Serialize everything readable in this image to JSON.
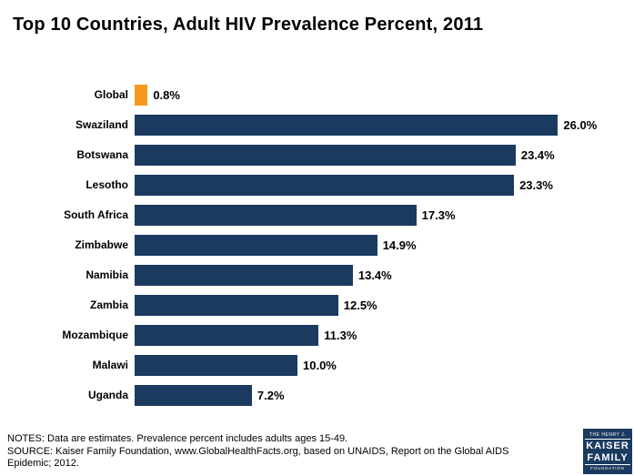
{
  "title": "Top 10 Countries, Adult HIV Prevalence Percent, 2011",
  "chart_data": {
    "type": "bar",
    "orientation": "horizontal",
    "title": "Top 10 Countries, Adult HIV Prevalence Percent, 2011",
    "xlabel": "",
    "ylabel": "",
    "xlim": [
      0,
      30
    ],
    "grid": false,
    "legend": "none",
    "categories": [
      "Global",
      "Swaziland",
      "Botswana",
      "Lesotho",
      "South Africa",
      "Zimbabwe",
      "Namibia",
      "Zambia",
      "Mozambique",
      "Malawi",
      "Uganda"
    ],
    "values": [
      0.8,
      26.0,
      23.4,
      23.3,
      17.3,
      14.9,
      13.4,
      12.5,
      11.3,
      10.0,
      7.2
    ],
    "value_labels": [
      "0.8%",
      "26.0%",
      "23.4%",
      "23.3%",
      "17.3%",
      "14.9%",
      "13.4%",
      "12.5%",
      "11.3%",
      "10.0%",
      "7.2%"
    ],
    "bar_color_default": "#1b3a5f",
    "bar_color_highlight": "#f8981d",
    "highlight_index": 0
  },
  "notes": {
    "line1": "NOTES: Data are estimates. Prevalence percent includes adults ages 15-49.",
    "line2": "SOURCE: Kaiser Family Foundation, www.GlobalHealthFacts.org, based on UNAIDS, Report on the Global AIDS Epidemic; 2012."
  },
  "logo": {
    "line1": "THE HENRY J.",
    "line2": "KAISER",
    "line3": "FAMILY",
    "line4": "FOUNDATION"
  }
}
